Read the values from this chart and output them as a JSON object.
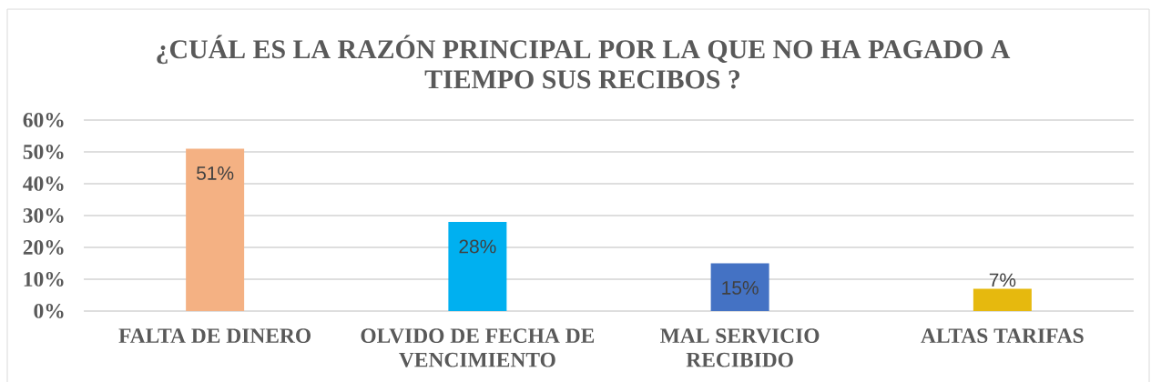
{
  "chart_data": {
    "type": "bar",
    "title": "¿CUÁL ES LA RAZÓN PRINCIPAL POR LA QUE NO HA PAGADO A TIEMPO SUS RECIBOS ?",
    "categories": [
      "FALTA DE DINERO",
      "OLVIDO DE FECHA DE VENCIMIENTO",
      "MAL SERVICIO RECIBIDO",
      "ALTAS TARIFAS"
    ],
    "values": [
      51,
      28,
      15,
      7
    ],
    "colors": [
      "#f4b183",
      "#00b0f0",
      "#4472c4",
      "#e6b90e"
    ],
    "value_labels": [
      "51%",
      "28%",
      "15%",
      "7%"
    ],
    "ylim": [
      0,
      60
    ],
    "yticks": [
      {
        "value": 0,
        "label": "0%"
      },
      {
        "value": 10,
        "label": "10%"
      },
      {
        "value": 20,
        "label": "20%"
      },
      {
        "value": 30,
        "label": "30%"
      },
      {
        "value": 40,
        "label": "40%"
      },
      {
        "value": 50,
        "label": "50%"
      },
      {
        "value": 60,
        "label": "60%"
      }
    ],
    "grid": "y"
  }
}
